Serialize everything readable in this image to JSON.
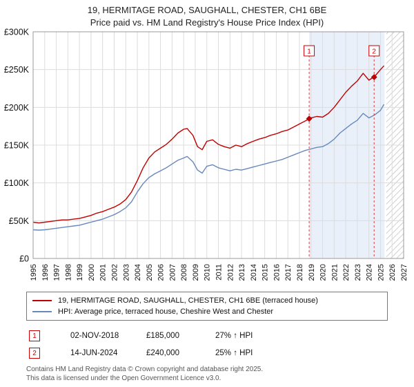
{
  "title": "19, HERMITAGE ROAD, SAUGHALL, CHESTER, CH1 6BE",
  "subtitle": "Price paid vs. HM Land Registry's House Price Index (HPI)",
  "chart_data": {
    "type": "line",
    "title": "19, HERMITAGE ROAD, SAUGHALL, CHESTER, CH1 6BE",
    "subtitle": "Price paid vs. HM Land Registry's House Price Index (HPI)",
    "xlim": [
      1995,
      2027
    ],
    "ylim": [
      0,
      300
    ],
    "y_unit": "GBP thousands",
    "grid": true,
    "legend_position": "bottom",
    "xticks": [
      1995,
      1996,
      1997,
      1998,
      1999,
      2000,
      2001,
      2002,
      2003,
      2004,
      2005,
      2006,
      2007,
      2008,
      2009,
      2010,
      2011,
      2012,
      2013,
      2014,
      2015,
      2016,
      2017,
      2018,
      2019,
      2020,
      2021,
      2022,
      2023,
      2024,
      2025,
      2026,
      2027
    ],
    "yticks": [
      {
        "v": 0,
        "label": "£0"
      },
      {
        "v": 50,
        "label": "£50K"
      },
      {
        "v": 100,
        "label": "£100K"
      },
      {
        "v": 150,
        "label": "£150K"
      },
      {
        "v": 200,
        "label": "£200K"
      },
      {
        "v": 250,
        "label": "£250K"
      },
      {
        "v": 300,
        "label": "£300K"
      }
    ],
    "shade_color": "#e9f0fa",
    "hatch_color": "#c4c4c4",
    "marker_color": "#cc2222",
    "shaded_region": {
      "from": 2018.84,
      "to": 2025.35
    },
    "hatched_region": {
      "from": 2025.5,
      "to": 2027
    },
    "x": [
      1995,
      1995.5,
      1996,
      1996.5,
      1997,
      1997.5,
      1998,
      1998.5,
      1999,
      1999.5,
      2000,
      2000.5,
      2001,
      2001.5,
      2002,
      2002.5,
      2003,
      2003.5,
      2004,
      2004.5,
      2005,
      2005.5,
      2006,
      2006.5,
      2007,
      2007.5,
      2008,
      2008.3,
      2008.8,
      2009.2,
      2009.6,
      2010,
      2010.5,
      2011,
      2011.5,
      2012,
      2012.5,
      2013,
      2013.5,
      2014,
      2014.5,
      2015,
      2015.5,
      2016,
      2016.5,
      2017,
      2017.5,
      2018,
      2018.5,
      2019,
      2019.5,
      2020,
      2020.5,
      2021,
      2021.5,
      2022,
      2022.5,
      2023,
      2023.5,
      2024,
      2024.5,
      2025,
      2025.3
    ],
    "series": [
      {
        "name": "19, HERMITAGE ROAD, SAUGHALL, CHESTER, CH1 6BE (terraced house)",
        "color": "#c00000",
        "values": [
          48,
          47,
          48,
          49,
          50,
          51,
          51,
          52,
          53,
          55,
          57,
          60,
          62,
          65,
          68,
          72,
          78,
          88,
          103,
          120,
          133,
          141,
          146,
          151,
          158,
          166,
          171,
          172,
          163,
          148,
          144,
          155,
          157,
          151,
          148,
          146,
          150,
          148,
          152,
          155,
          158,
          160,
          163,
          165,
          168,
          170,
          174,
          178,
          182,
          186,
          188,
          187,
          192,
          200,
          210,
          220,
          228,
          235,
          245,
          236,
          241,
          250,
          255
        ]
      },
      {
        "name": "HPI: Average price, terraced house, Cheshire West and Chester",
        "color": "#6688bb",
        "values": [
          38,
          37.5,
          38,
          39,
          40,
          41,
          42,
          43,
          44,
          46,
          48,
          50,
          52,
          55,
          58,
          62,
          67,
          75,
          88,
          99,
          107,
          112,
          116,
          120,
          125,
          130,
          133,
          135,
          128,
          117,
          113,
          122,
          124,
          120,
          118,
          116,
          118,
          117,
          119,
          121,
          123,
          125,
          127,
          129,
          131,
          134,
          137,
          140,
          143,
          145,
          147,
          148,
          152,
          158,
          166,
          172,
          178,
          183,
          192,
          186,
          190,
          196,
          204
        ]
      }
    ],
    "markers": [
      {
        "n": "1",
        "x": 2018.84,
        "y": 185
      },
      {
        "n": "2",
        "x": 2024.45,
        "y": 240
      }
    ]
  },
  "transactions": [
    {
      "label": "1",
      "date": "02-NOV-2018",
      "price": "£185,000",
      "hpi_change": "27% ↑ HPI"
    },
    {
      "label": "2",
      "date": "14-JUN-2024",
      "price": "£240,000",
      "hpi_change": "25% ↑ HPI"
    }
  ],
  "footer": {
    "line1": "Contains HM Land Registry data © Crown copyright and database right 2025.",
    "line2": "This data is licensed under the Open Government Licence v3.0."
  }
}
